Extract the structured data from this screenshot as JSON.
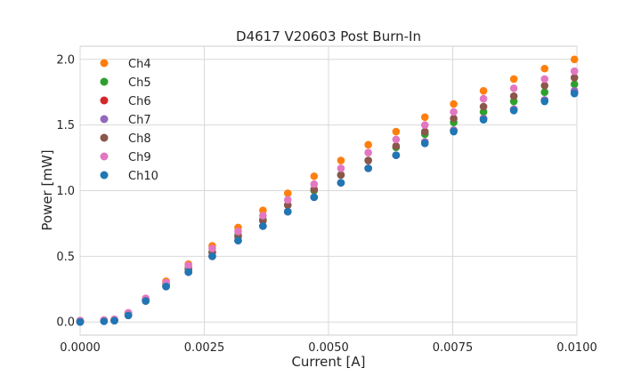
{
  "chart_data": {
    "type": "scatter",
    "title": "D4617 V20603 Post Burn-In",
    "xlabel": "Current [A]",
    "ylabel": "Power [mW]",
    "xlim": [
      0,
      0.01
    ],
    "ylim": [
      -0.1,
      2.1
    ],
    "x_ticks": [
      "0.0000",
      "0.0025",
      "0.0050",
      "0.0075",
      "0.0100"
    ],
    "y_ticks": [
      "0.0",
      "0.5",
      "1.0",
      "1.5",
      "2.0"
    ],
    "grid": true,
    "legend_position": "top-left",
    "x": [
      0,
      0.00048,
      0.00069,
      0.00097,
      0.00132,
      0.00173,
      0.00218,
      0.00266,
      0.00318,
      0.00368,
      0.00418,
      0.00471,
      0.00525,
      0.0058,
      0.00636,
      0.00694,
      0.00752,
      0.00812,
      0.00873,
      0.00935,
      0.00995
    ],
    "series": [
      {
        "name": "Ch4",
        "color": "#ff7f0e",
        "values": [
          0.01,
          0.015,
          0.02,
          0.07,
          0.18,
          0.31,
          0.44,
          0.58,
          0.72,
          0.85,
          0.98,
          1.11,
          1.23,
          1.35,
          1.45,
          1.56,
          1.66,
          1.76,
          1.85,
          1.93,
          2.0
        ]
      },
      {
        "name": "Ch5",
        "color": "#2ca02c",
        "values": [
          0.01,
          0.01,
          0.015,
          0.06,
          0.17,
          0.29,
          0.41,
          0.53,
          0.66,
          0.78,
          0.89,
          1.0,
          1.12,
          1.23,
          1.33,
          1.43,
          1.52,
          1.6,
          1.68,
          1.75,
          1.81
        ]
      },
      {
        "name": "Ch6",
        "color": "#d62728",
        "values": [
          0.0,
          0.01,
          0.01,
          0.05,
          0.16,
          0.27,
          0.38,
          0.5,
          0.62,
          0.73,
          0.84,
          0.95,
          1.06,
          1.17,
          1.27,
          1.37,
          1.46,
          1.55,
          1.62,
          1.69,
          1.75
        ]
      },
      {
        "name": "Ch7",
        "color": "#9467bd",
        "values": [
          0.0,
          0.01,
          0.01,
          0.05,
          0.16,
          0.27,
          0.38,
          0.5,
          0.62,
          0.73,
          0.84,
          0.95,
          1.06,
          1.17,
          1.27,
          1.37,
          1.46,
          1.55,
          1.62,
          1.69,
          1.76
        ]
      },
      {
        "name": "Ch8",
        "color": "#8c564b",
        "values": [
          0.01,
          0.01,
          0.015,
          0.06,
          0.17,
          0.28,
          0.4,
          0.53,
          0.65,
          0.77,
          0.89,
          1.01,
          1.12,
          1.23,
          1.34,
          1.45,
          1.55,
          1.64,
          1.72,
          1.8,
          1.86
        ]
      },
      {
        "name": "Ch9",
        "color": "#e377c2",
        "values": [
          0.01,
          0.015,
          0.02,
          0.07,
          0.18,
          0.3,
          0.43,
          0.56,
          0.69,
          0.81,
          0.93,
          1.05,
          1.17,
          1.29,
          1.39,
          1.5,
          1.6,
          1.7,
          1.78,
          1.85,
          1.91
        ]
      },
      {
        "name": "Ch10",
        "color": "#1f77b4",
        "values": [
          0.0,
          0.005,
          0.01,
          0.05,
          0.16,
          0.27,
          0.38,
          0.5,
          0.62,
          0.73,
          0.84,
          0.95,
          1.06,
          1.17,
          1.27,
          1.36,
          1.45,
          1.54,
          1.61,
          1.68,
          1.74
        ]
      }
    ]
  }
}
